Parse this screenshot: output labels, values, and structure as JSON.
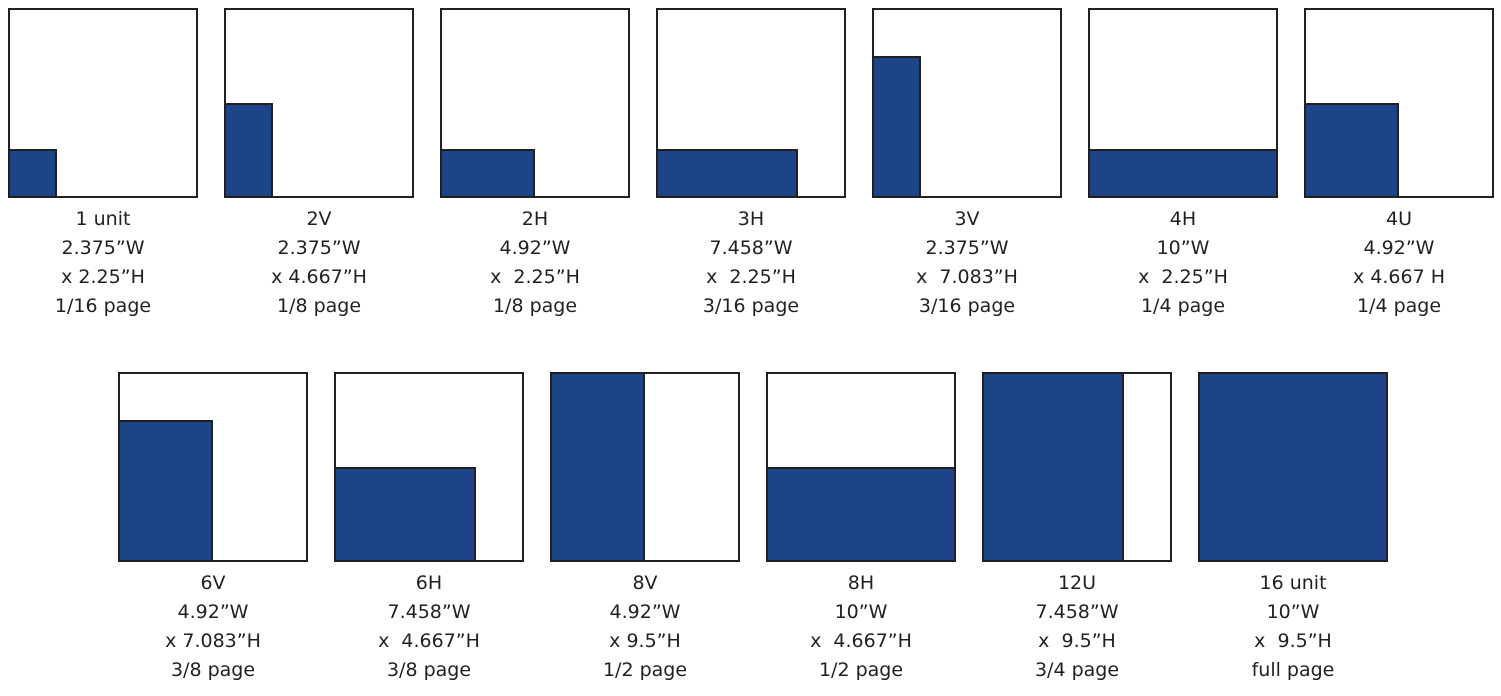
{
  "colors": {
    "fill": "#1e4488",
    "border": "#231f20",
    "text": "#231f20"
  },
  "ads": [
    {
      "name": "1 unit",
      "width": "2.375”W",
      "height": "x 2.25”H",
      "page": "1/16 page",
      "fill_w": 0.25,
      "fill_h": 0.25
    },
    {
      "name": "2V",
      "width": "2.375”W",
      "height": "x 4.667”H",
      "page": "1/8 page",
      "fill_w": 0.25,
      "fill_h": 0.5
    },
    {
      "name": "2H",
      "width": "4.92”W",
      "height": "x  2.25”H",
      "page": "1/8 page",
      "fill_w": 0.5,
      "fill_h": 0.25
    },
    {
      "name": "3H",
      "width": "7.458”W",
      "height": "x  2.25”H",
      "page": "3/16 page",
      "fill_w": 0.75,
      "fill_h": 0.25
    },
    {
      "name": "3V",
      "width": "2.375”W",
      "height": "x  7.083”H",
      "page": "3/16 page",
      "fill_w": 0.25,
      "fill_h": 0.75
    },
    {
      "name": "4H",
      "width": "10”W",
      "height": "x  2.25”H",
      "page": "1/4 page",
      "fill_w": 1.0,
      "fill_h": 0.25
    },
    {
      "name": "4U",
      "width": "4.92”W",
      "height": "x 4.667 H",
      "page": "1/4 page",
      "fill_w": 0.5,
      "fill_h": 0.5
    },
    {
      "name": "6V",
      "width": "4.92”W",
      "height": "x 7.083”H",
      "page": "3/8 page",
      "fill_w": 0.5,
      "fill_h": 0.75
    },
    {
      "name": "6H",
      "width": "7.458”W",
      "height": "x  4.667”H",
      "page": "3/8 page",
      "fill_w": 0.75,
      "fill_h": 0.5
    },
    {
      "name": "8V",
      "width": "4.92”W",
      "height": "x 9.5”H",
      "page": "1/2 page",
      "fill_w": 0.5,
      "fill_h": 1.0
    },
    {
      "name": "8H",
      "width": "10”W",
      "height": "x  4.667”H",
      "page": "1/2 page",
      "fill_w": 1.0,
      "fill_h": 0.5
    },
    {
      "name": "12U",
      "width": "7.458”W",
      "height": "x  9.5”H",
      "page": "3/4 page",
      "fill_w": 0.75,
      "fill_h": 1.0
    },
    {
      "name": "16 unit",
      "width": "10”W",
      "height": "x  9.5”H",
      "page": "full page",
      "fill_w": 1.0,
      "fill_h": 1.0
    }
  ]
}
